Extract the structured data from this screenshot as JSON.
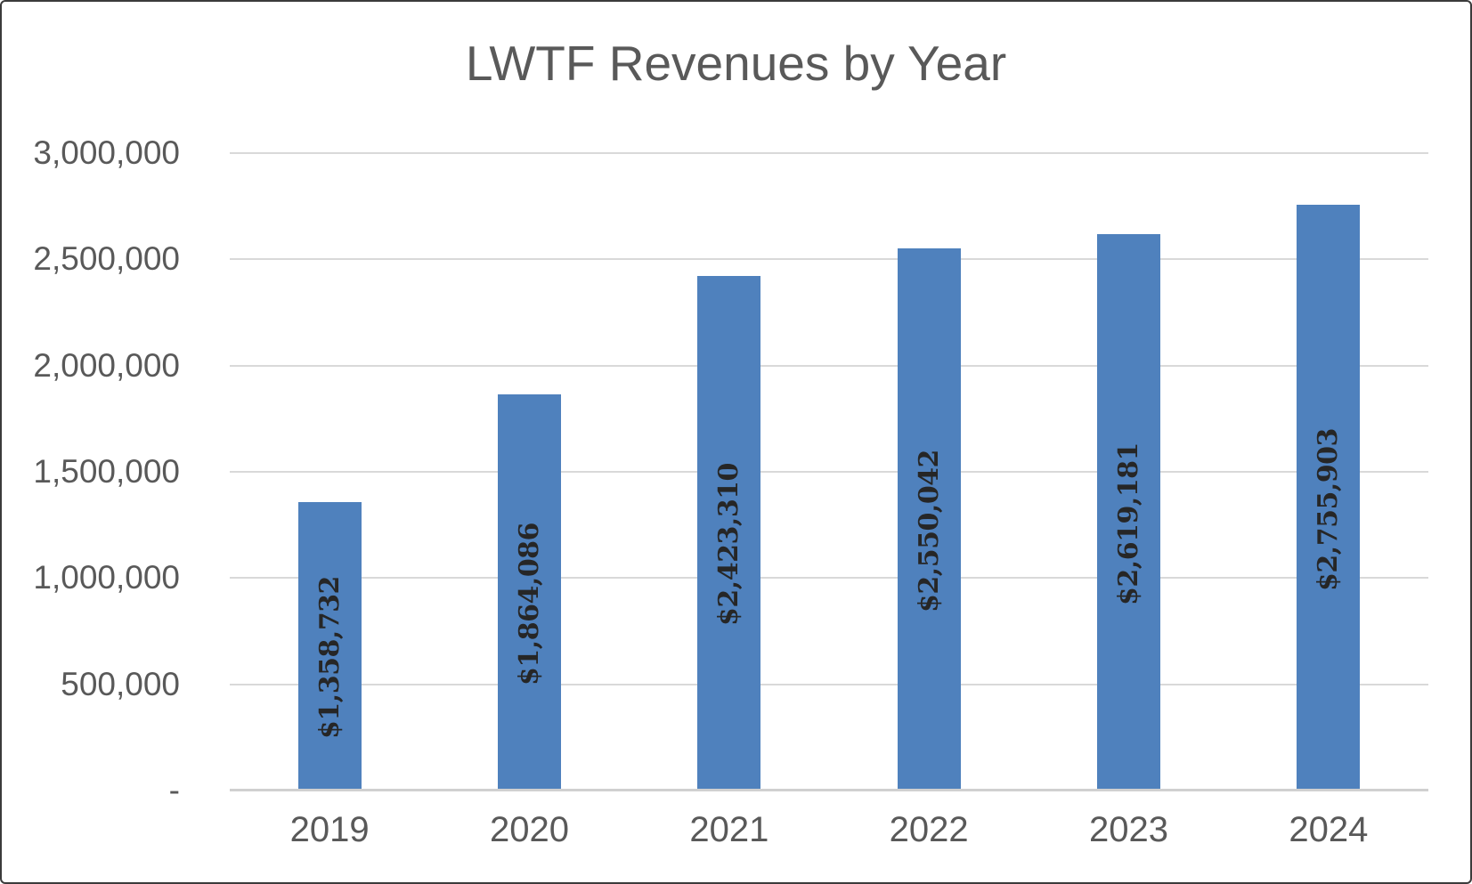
{
  "chart_data": {
    "type": "bar",
    "title": "LWTF Revenues by Year",
    "xlabel": "",
    "ylabel": "",
    "categories": [
      "2019",
      "2020",
      "2021",
      "2022",
      "2023",
      "2024"
    ],
    "values": [
      1358732,
      1864086,
      2423310,
      2550042,
      2619181,
      2755903
    ],
    "data_labels": [
      "$1,358,732",
      "$1,864,086",
      "$2,423,310",
      "$2,550,042",
      "$2,619,181",
      "$2,755,903"
    ],
    "ylim": [
      0,
      3000000
    ],
    "y_ticks": [
      {
        "value": 0,
        "label": "-"
      },
      {
        "value": 500000,
        "label": "500,000"
      },
      {
        "value": 1000000,
        "label": "1,000,000"
      },
      {
        "value": 1500000,
        "label": "1,500,000"
      },
      {
        "value": 2000000,
        "label": "2,000,000"
      },
      {
        "value": 2500000,
        "label": "2,500,000"
      },
      {
        "value": 3000000,
        "label": "3,000,000"
      }
    ],
    "grid": true,
    "legend": false,
    "bar_color": "#4F81BD"
  },
  "colors": {
    "title_text": "#595959",
    "axis_text": "#595959",
    "data_label_text": "#262626",
    "gridline": "#D9D9D9",
    "axis_line": "#D0D0D0",
    "background": "#FFFFFF",
    "border": "#3B3B3B"
  }
}
